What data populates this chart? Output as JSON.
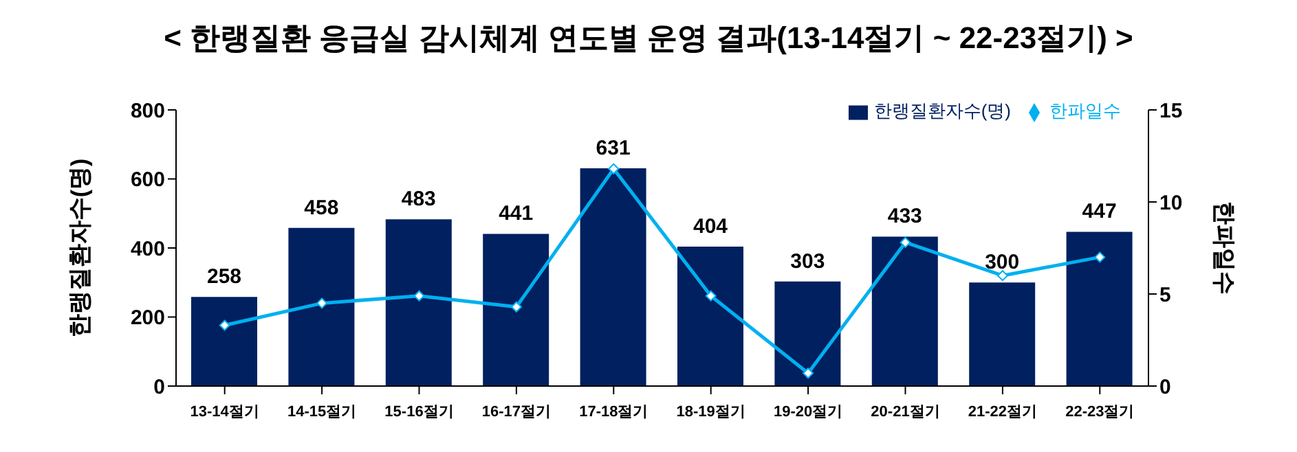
{
  "chart_data": {
    "type": "bar",
    "title": "< 한랭질환 응급실 감시체계 연도별 운영 결과(13-14절기 ~ 22-23절기) >",
    "ylabel": "한랭질환자수(명)",
    "y2label": "한파일수",
    "categories": [
      "13-14절기",
      "14-15절기",
      "15-16절기",
      "16-17절기",
      "17-18절기",
      "18-19절기",
      "19-20절기",
      "20-21절기",
      "21-22절기",
      "22-23절기"
    ],
    "series": [
      {
        "name": "한랭질환자수(명)",
        "color": "#002060",
        "values": [
          258,
          458,
          483,
          441,
          631,
          404,
          303,
          433,
          300,
          447
        ],
        "data_labels": true
      },
      {
        "name": "한파일수",
        "type": "line",
        "axis": "y2",
        "color": "#00b0f0",
        "marker": "diamond",
        "values": [
          3.3,
          4.5,
          4.9,
          4.3,
          11.8,
          4.9,
          0.7,
          7.8,
          6.0,
          7.0
        ]
      }
    ],
    "ylim": [
      0,
      800
    ],
    "yticks": [
      0,
      200,
      400,
      600,
      800
    ],
    "y2lim": [
      0,
      15
    ],
    "y2ticks": [
      0,
      5,
      10,
      15
    ],
    "legend": "top right",
    "grid": false
  }
}
